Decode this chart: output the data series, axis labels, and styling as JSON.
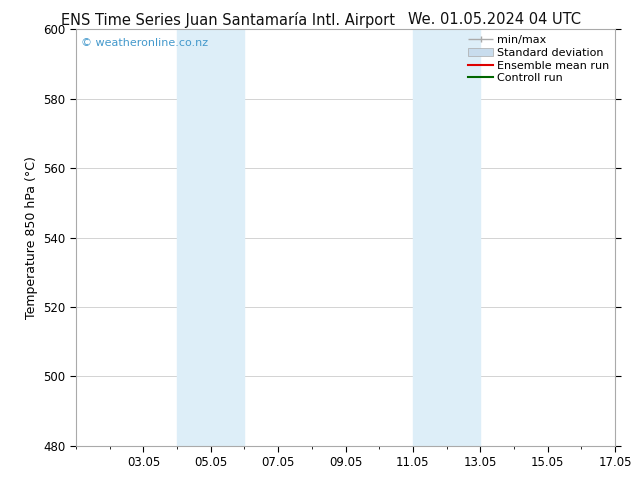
{
  "title_left": "ENS Time Series Juan Santamaría Intl. Airport",
  "title_right": "We. 01.05.2024 04 UTC",
  "ylabel": "Temperature 850 hPa (°C)",
  "ylim": [
    480,
    600
  ],
  "yticks": [
    480,
    500,
    520,
    540,
    560,
    580,
    600
  ],
  "xlim": [
    1.0,
    17.0
  ],
  "xtick_labels": [
    "03.05",
    "05.05",
    "07.05",
    "09.05",
    "11.05",
    "13.05",
    "15.05",
    "17.05"
  ],
  "xtick_positions": [
    3,
    5,
    7,
    9,
    11,
    13,
    15,
    17
  ],
  "minor_xtick_positions": [
    1,
    2,
    3,
    4,
    5,
    6,
    7,
    8,
    9,
    10,
    11,
    12,
    13,
    14,
    15,
    16,
    17
  ],
  "watermark": "© weatheronline.co.nz",
  "watermark_color": "#4499cc",
  "bg_color": "#ffffff",
  "plot_bg_color": "#ffffff",
  "shaded_regions": [
    {
      "x_start": 4.0,
      "x_end": 5.0,
      "color": "#ddeef8"
    },
    {
      "x_start": 5.0,
      "x_end": 6.0,
      "color": "#ddeef8"
    },
    {
      "x_start": 11.0,
      "x_end": 12.0,
      "color": "#ddeef8"
    },
    {
      "x_start": 12.0,
      "x_end": 13.0,
      "color": "#ddeef8"
    }
  ],
  "grid_color": "#cccccc",
  "spine_color": "#aaaaaa",
  "title_fontsize": 10.5,
  "ylabel_fontsize": 9,
  "tick_fontsize": 8.5,
  "legend_fontsize": 8,
  "legend_items": [
    {
      "label": "min/max",
      "color": "#aaaaaa"
    },
    {
      "label": "Standard deviation",
      "color": "#c8dced"
    },
    {
      "label": "Ensemble mean run",
      "color": "#dd0000"
    },
    {
      "label": "Controll run",
      "color": "#006600"
    }
  ]
}
